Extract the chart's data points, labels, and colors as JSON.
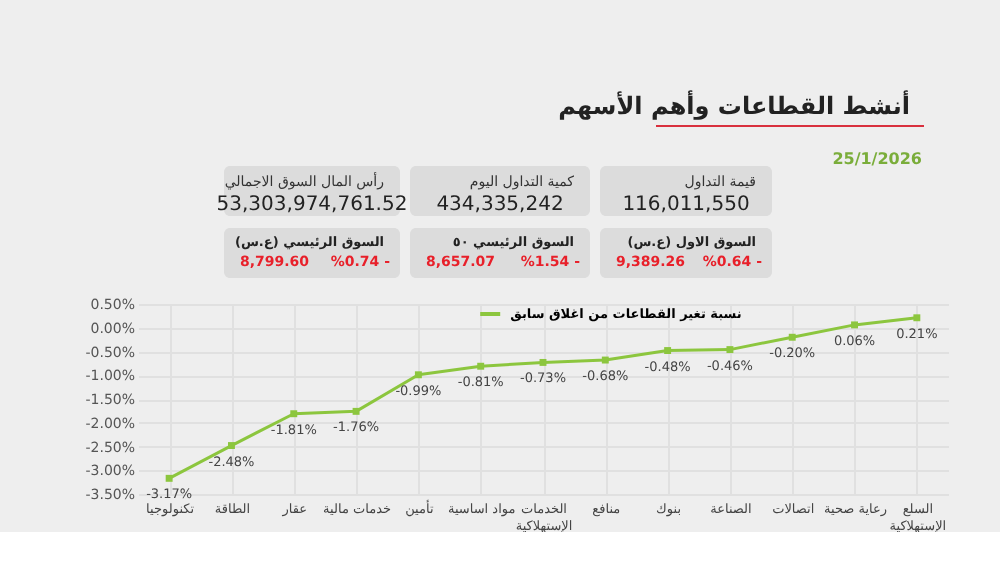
{
  "chart_data": {
    "type": "line",
    "title": "أنشط القطاعات وأهم الأسهم",
    "subtitle": "25/1/2026",
    "annotations": [
      "قيمة التداول",
      "116,011,550",
      "كمية التداول اليوم",
      "434,335,242",
      "رأس المال السوق الاجمالي",
      "53,303,974,761.52",
      "السوق الاول (ع.س)",
      "9,389.26",
      "%0.64 -",
      "السوق الرئيسي ٥٠",
      "8,657.07",
      "%1.54 -",
      "السوق الرئيسي (ع.س)",
      "8,799.60",
      "%0.74 -"
    ],
    "categories": [
      "تكنولوجيا",
      "الطاقة",
      "عقار",
      "خدمات مالية",
      "تأمين",
      "مواد اساسية",
      "الخدمات الإستهلاكية",
      "منافع",
      "بنوك",
      "الصناعة",
      "اتصالات",
      "رعاية صحية",
      "السلع الإستهلاكية"
    ],
    "series": [
      {
        "name": "نسبة تغير القطاعات من اغلاق سابق",
        "color": "#8cc63e",
        "values": [
          -3.17,
          -2.48,
          -1.81,
          -1.76,
          -0.99,
          -0.81,
          -0.73,
          -0.68,
          -0.48,
          -0.46,
          -0.2,
          0.06,
          0.21
        ],
        "value_labels": [
          "-3.17%",
          "-2.48%",
          "-1.81%",
          "-1.76%",
          "-0.99%",
          "-0.81%",
          "-0.73%",
          "-0.68%",
          "-0.48%",
          "-0.46%",
          "-0.20%",
          "0.06%",
          "0.21%"
        ]
      }
    ],
    "ylim": [
      -3.5,
      0.5
    ],
    "yticks": [
      {
        "value": 0.5,
        "label": "0.50%"
      },
      {
        "value": 0,
        "label": "0.00%"
      },
      {
        "value": -0.5,
        "label": "-0.50%"
      },
      {
        "value": -1,
        "label": "-1.00%"
      },
      {
        "value": -1.5,
        "label": "-1.50%"
      },
      {
        "value": -2,
        "label": "-2.00%"
      },
      {
        "value": -2.5,
        "label": "-2.50%"
      },
      {
        "value": -3,
        "label": "-3.00%"
      },
      {
        "value": -3.5,
        "label": "-3.50%"
      }
    ],
    "grid": true,
    "legend": "top",
    "marker": "square",
    "line_style": "solid"
  }
}
